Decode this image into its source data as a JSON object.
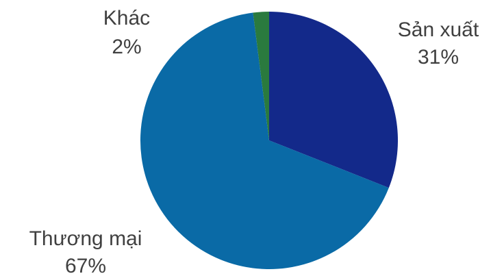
{
  "chart_data": {
    "type": "pie",
    "categories": [
      "Sản xuất",
      "Thương mại",
      "Khác"
    ],
    "values": [
      31,
      67,
      2
    ],
    "value_labels": [
      "31%",
      "67%",
      "2%"
    ],
    "colors": [
      "#13298a",
      "#0a6aa6",
      "#2a7a3e"
    ]
  }
}
